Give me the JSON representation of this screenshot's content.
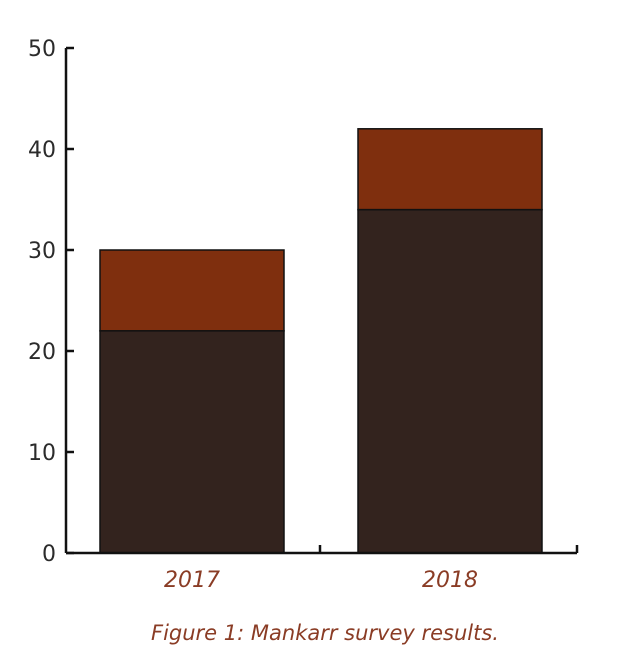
{
  "chart_data": {
    "type": "bar",
    "stacked": true,
    "categories": [
      "2017",
      "2018"
    ],
    "series": [
      {
        "values": [
          22,
          34
        ],
        "color": "#33231e"
      },
      {
        "values": [
          8,
          8
        ],
        "color": "#7f2f0e"
      }
    ],
    "totals": [
      30,
      42
    ],
    "ylim": [
      0,
      50
    ],
    "yticks": [
      0,
      10,
      20,
      30,
      40,
      50
    ],
    "grid": false,
    "legend": "none",
    "caption": "Figure 1: Mankarr survey results.",
    "label_color": "#8a3c25",
    "axis_color": "#111111"
  }
}
